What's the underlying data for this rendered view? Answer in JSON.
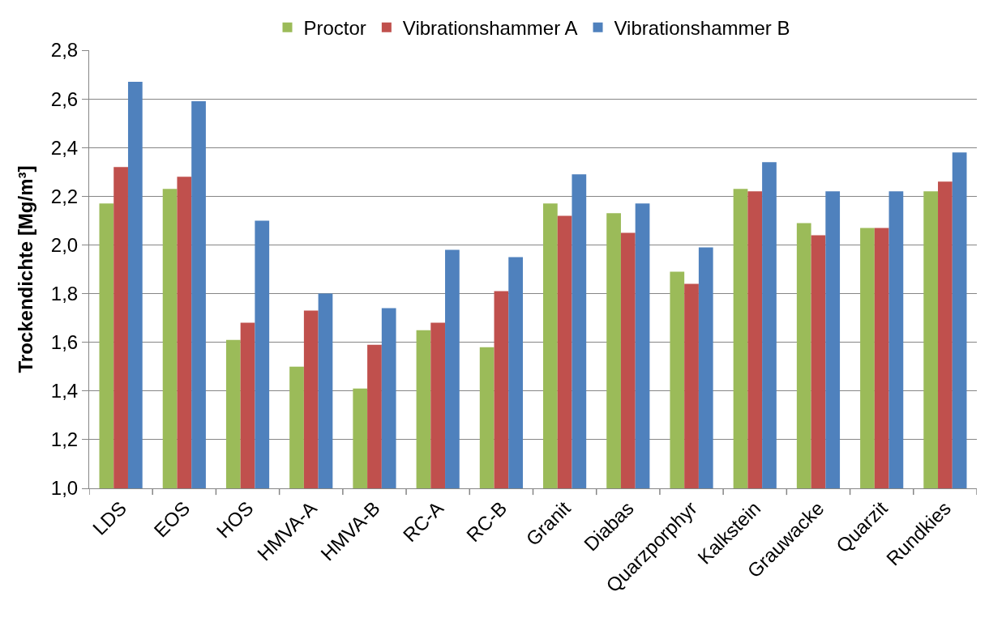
{
  "chart_data": {
    "type": "bar",
    "ylabel": "Trockendichte [Mg/m³]",
    "categories": [
      "LDS",
      "EOS",
      "HOS",
      "HMVA-A",
      "HMVA-B",
      "RC-A",
      "RC-B",
      "Granit",
      "Diabas",
      "Quarzporphyr",
      "Kalkstein",
      "Grauwacke",
      "Quarzit",
      "Rundkies"
    ],
    "series": [
      {
        "name": "Proctor",
        "color": "#9bbb59",
        "values": [
          2.17,
          2.23,
          1.61,
          1.5,
          1.41,
          1.65,
          1.58,
          2.17,
          2.13,
          1.89,
          2.23,
          2.09,
          2.07,
          2.22
        ]
      },
      {
        "name": "Vibrationshammer A",
        "color": "#c0504d",
        "values": [
          2.32,
          2.28,
          1.68,
          1.73,
          1.59,
          1.68,
          1.81,
          2.12,
          2.05,
          1.84,
          2.22,
          2.04,
          2.07,
          2.26
        ]
      },
      {
        "name": "Vibrationshammer B",
        "color": "#4f81bd",
        "values": [
          2.67,
          2.59,
          2.1,
          1.8,
          1.74,
          1.98,
          1.95,
          2.29,
          2.17,
          1.99,
          2.34,
          2.22,
          2.22,
          2.38
        ]
      }
    ],
    "ylim": [
      1.0,
      2.8
    ],
    "yticks": [
      {
        "value": 1.0,
        "label": "1,0"
      },
      {
        "value": 1.2,
        "label": "1,2"
      },
      {
        "value": 1.4,
        "label": "1,4"
      },
      {
        "value": 1.6,
        "label": "1,6"
      },
      {
        "value": 1.8,
        "label": "1,8"
      },
      {
        "value": 2.0,
        "label": "2,0"
      },
      {
        "value": 2.2,
        "label": "2,2"
      },
      {
        "value": 2.4,
        "label": "2,4"
      },
      {
        "value": 2.6,
        "label": "2,6"
      },
      {
        "value": 2.8,
        "label": "2,8"
      }
    ],
    "grid": "y",
    "legend": "top"
  }
}
